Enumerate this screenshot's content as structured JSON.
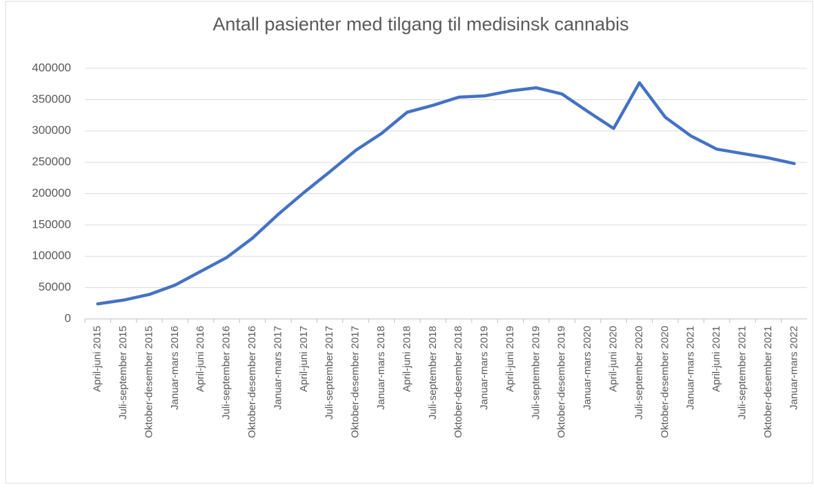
{
  "chart_data": {
    "type": "line",
    "title": "Antall pasienter med tilgang til medisinsk cannabis",
    "categories": [
      "April-juni 2015",
      "Juli-september 2015",
      "Oktober-desember 2015",
      "Januar-mars 2016",
      "April-juni 2016",
      "Juli-september 2016",
      "Oktober-desember 2016",
      "Januar-mars 2017",
      "April-juni 2017",
      "Juli-september 2017",
      "Oktober-desember 2017",
      "Januar-mars 2018",
      "April-juni 2018",
      "Juli-september 2018",
      "Oktober-desember 2018",
      "Januar-mars 2019",
      "April-juni 2019",
      "Juli-september 2019",
      "Oktober-desember 2019",
      "Januar-mars 2020",
      "April-juni 2020",
      "Juli-september 2020",
      "Oktober-desember 2020",
      "Januar-mars 2021",
      "April-juni 2021",
      "Juli-september 2021",
      "Oktober-desember 2021",
      "Januar-mars 2022"
    ],
    "series": [
      {
        "name": "Antall pasienter",
        "color": "#4472c4",
        "values": [
          24000,
          30000,
          39000,
          54000,
          76000,
          98000,
          129000,
          167000,
          202000,
          235000,
          269000,
          296000,
          330000,
          341000,
          354000,
          356000,
          364000,
          369000,
          359000,
          331000,
          304000,
          377000,
          322000,
          292000,
          271000,
          264000,
          257000,
          248000
        ]
      }
    ],
    "ylim": [
      0,
      400000
    ],
    "yticks": [
      0,
      50000,
      100000,
      150000,
      200000,
      250000,
      300000,
      350000,
      400000
    ],
    "grid": true
  }
}
